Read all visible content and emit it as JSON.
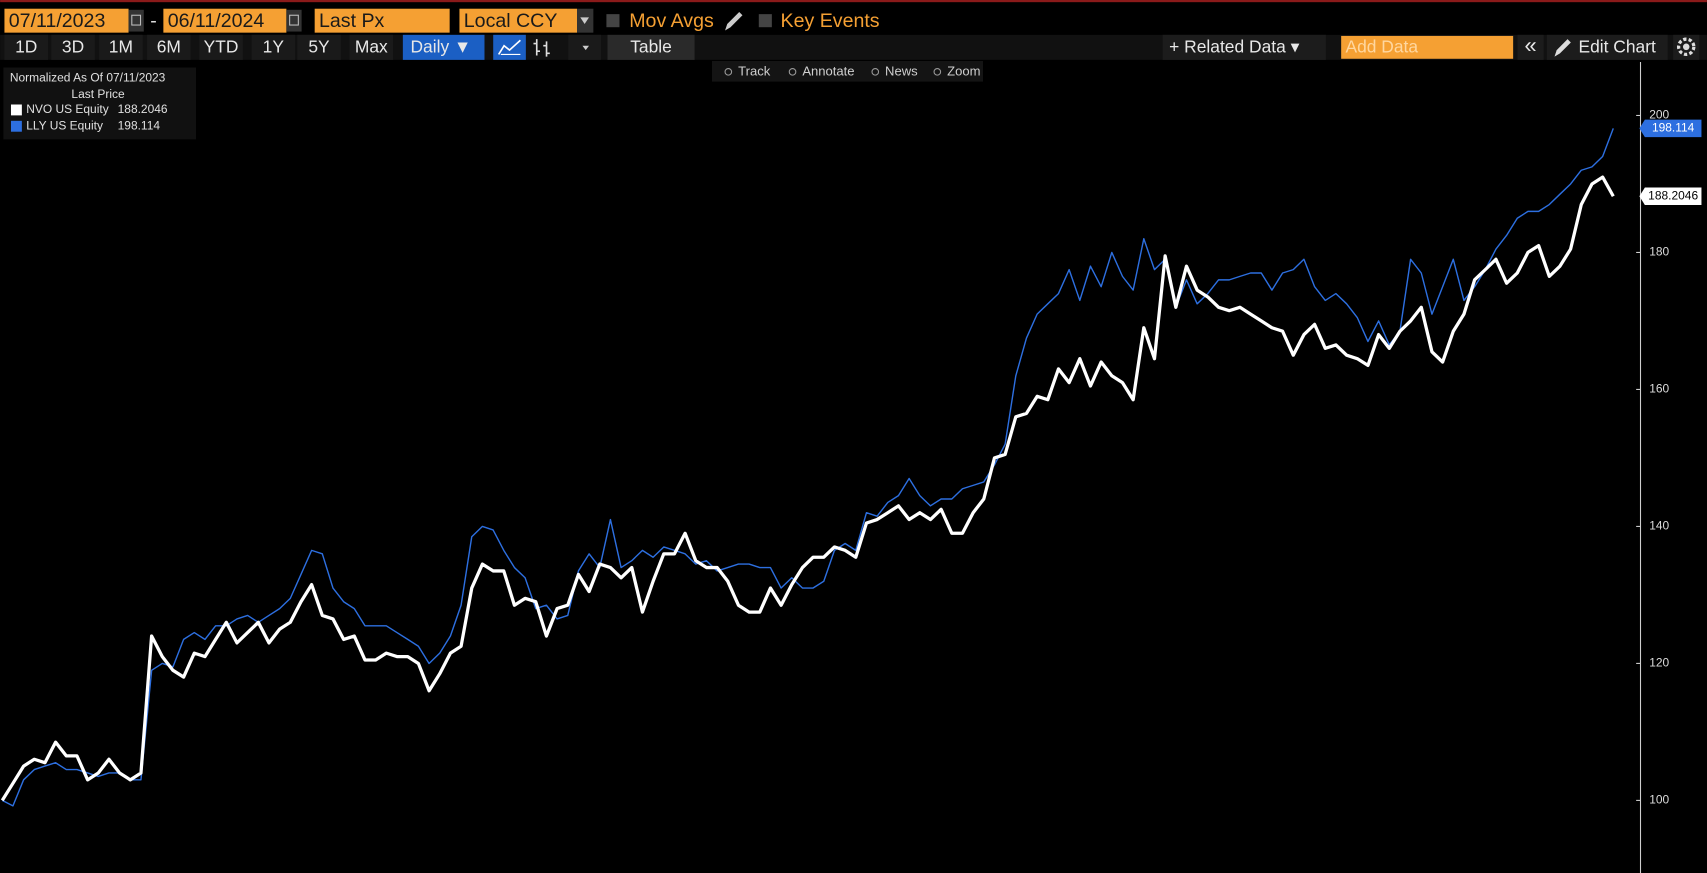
{
  "ui": {
    "start_date": "07/11/2023",
    "date_sep": "-",
    "end_date": "06/11/2024",
    "field": "Last Px",
    "currency": "Local CCY",
    "mov_avgs": "Mov Avgs",
    "key_events": "Key Events",
    "ranges": [
      "1D",
      "3D",
      "1M",
      "6M",
      "YTD",
      "1Y",
      "5Y",
      "Max"
    ],
    "frequency": "Daily ▼",
    "table": "Table",
    "related_data": "+ Related Data ▾",
    "add_data": "Add Data",
    "collapse": "«",
    "edit_chart": "Edit Chart",
    "chart_tools": [
      "Track",
      "Annotate",
      "News",
      "Zoom"
    ]
  },
  "chart_data": {
    "type": "line",
    "legend_title": "Normalized As Of 07/11/2023",
    "legend_subtitle": "Last Price",
    "ylim": [
      89.4,
      207.8
    ],
    "yticks": [
      100,
      120,
      140,
      160,
      180,
      200
    ],
    "series": [
      {
        "name": "NVO US Equity",
        "color": "#ffffff",
        "values": [
          100,
          102.5,
          105,
          106,
          105.5,
          108.5,
          106.5,
          106.5,
          103,
          104,
          106,
          104,
          103,
          104,
          124,
          121,
          119,
          118,
          121.5,
          121,
          123.5,
          126,
          123,
          124.5,
          126,
          123,
          125,
          126,
          129,
          131.5,
          127,
          126.5,
          123.5,
          124,
          120.5,
          120.5,
          121.5,
          121,
          121,
          120,
          116,
          118.5,
          121.5,
          122.5,
          131,
          134.5,
          133.5,
          133.5,
          128.5,
          129.5,
          129,
          124,
          128,
          128.5,
          133,
          130.5,
          134.5,
          134,
          132.5,
          134,
          127.5,
          132,
          136,
          136,
          139,
          135,
          134,
          134,
          132,
          128.5,
          127.5,
          127.5,
          131,
          128.5,
          131.5,
          134,
          135.5,
          135.5,
          137,
          136.5,
          135.5,
          140.5,
          141,
          142,
          143,
          141,
          142,
          141,
          142.5,
          139,
          139,
          142,
          144,
          150,
          150.5,
          156,
          156.5,
          159,
          158.5,
          163,
          161,
          164.5,
          160.5,
          164,
          162,
          161,
          158.5,
          169,
          164.5,
          179.5,
          172,
          178,
          174.5,
          173.5,
          172,
          171.5,
          172,
          171,
          170,
          169,
          168.5,
          165,
          168,
          169.5,
          166,
          166.5,
          165,
          164.5,
          163.5,
          168,
          166,
          168.5,
          170,
          172,
          165.5,
          164,
          168.5,
          171,
          176,
          177.5,
          179,
          175.5,
          177,
          180,
          181,
          176.5,
          178,
          180.5,
          187,
          190,
          191,
          188.2046
        ]
      },
      {
        "name": "LLY US Equity",
        "color": "#2d6fe0",
        "values": [
          100,
          99.2,
          103,
          104.5,
          105,
          105.5,
          104.5,
          104.5,
          104,
          103.5,
          104,
          104,
          103,
          103,
          119,
          120,
          119.5,
          123.5,
          124.5,
          123.5,
          125.5,
          125.5,
          126.5,
          127,
          126,
          127,
          128,
          129.5,
          133,
          136.5,
          136,
          131,
          129,
          128,
          125.5,
          125.5,
          125.5,
          124.5,
          123.5,
          122.5,
          120,
          121.5,
          124,
          128.5,
          138.5,
          140,
          139.5,
          136.5,
          134,
          132.5,
          128,
          128.5,
          126.5,
          127,
          133.5,
          136,
          134,
          141,
          134,
          135,
          136.5,
          135.5,
          137,
          136.5,
          136,
          134.5,
          135,
          133.5,
          134,
          134.5,
          134.5,
          134,
          134,
          131,
          132.5,
          131,
          131,
          132,
          136.5,
          137.5,
          136.5,
          142,
          141.5,
          143.5,
          144.5,
          147,
          144.5,
          143,
          144,
          144,
          145.5,
          146,
          146.5,
          149,
          152,
          162,
          167.5,
          171,
          172.5,
          174,
          177.5,
          173,
          178,
          175,
          180,
          176.5,
          174.5,
          182,
          177.5,
          179,
          172,
          176,
          172.5,
          174,
          176,
          176,
          176.5,
          177,
          177,
          174.5,
          177,
          177.5,
          179,
          175,
          173,
          174,
          172.5,
          170.5,
          167,
          170,
          166.5,
          168.5,
          179,
          177,
          171,
          175,
          179,
          173,
          175,
          177.5,
          180.5,
          182.5,
          185,
          186,
          186,
          187,
          188.5,
          190,
          192,
          192.5,
          194,
          198.114
        ]
      }
    ]
  }
}
